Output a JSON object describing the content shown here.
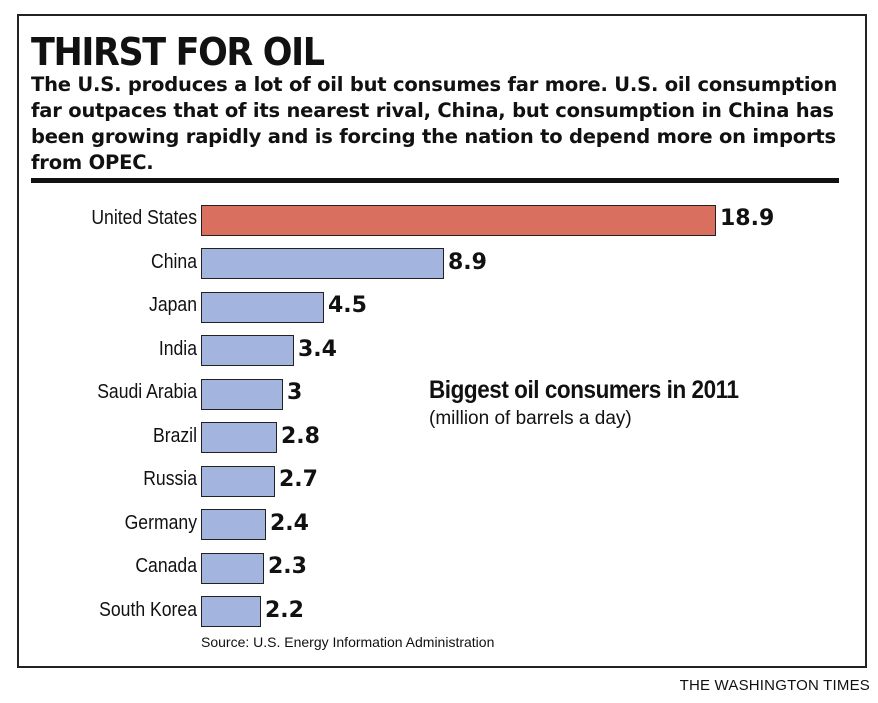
{
  "header": {
    "title": "THIRST FOR OIL",
    "description": "The U.S. produces a lot of oil but consumes far more. U.S. oil consumption far outpaces that of its nearest rival, China, but consumption in China has been growing rapidly and is forcing the nation to depend more on imports from OPEC."
  },
  "chart_data": {
    "type": "bar",
    "orientation": "horizontal",
    "title": "Biggest oil consumers in 2011",
    "subtitle": "(million of barrels a day)",
    "categories": [
      "United States",
      "China",
      "Japan",
      "India",
      "Saudi Arabia",
      "Brazil",
      "Russia",
      "Germany",
      "Canada",
      "South Korea"
    ],
    "values": [
      18.9,
      8.9,
      4.5,
      3.4,
      3,
      2.8,
      2.7,
      2.4,
      2.3,
      2.2
    ],
    "value_labels": [
      "18.9",
      "8.9",
      "4.5",
      "3.4",
      "3",
      "2.8",
      "2.7",
      "2.4",
      "2.3",
      "2.2"
    ],
    "highlight_index": 0,
    "colors": {
      "highlight": "#d9705f",
      "default": "#a3b4de"
    },
    "grid": false,
    "axis_visible": false
  },
  "footer": {
    "source": "Source: U.S. Energy Information Administration",
    "credit": "THE WASHINGTON TIMES"
  }
}
